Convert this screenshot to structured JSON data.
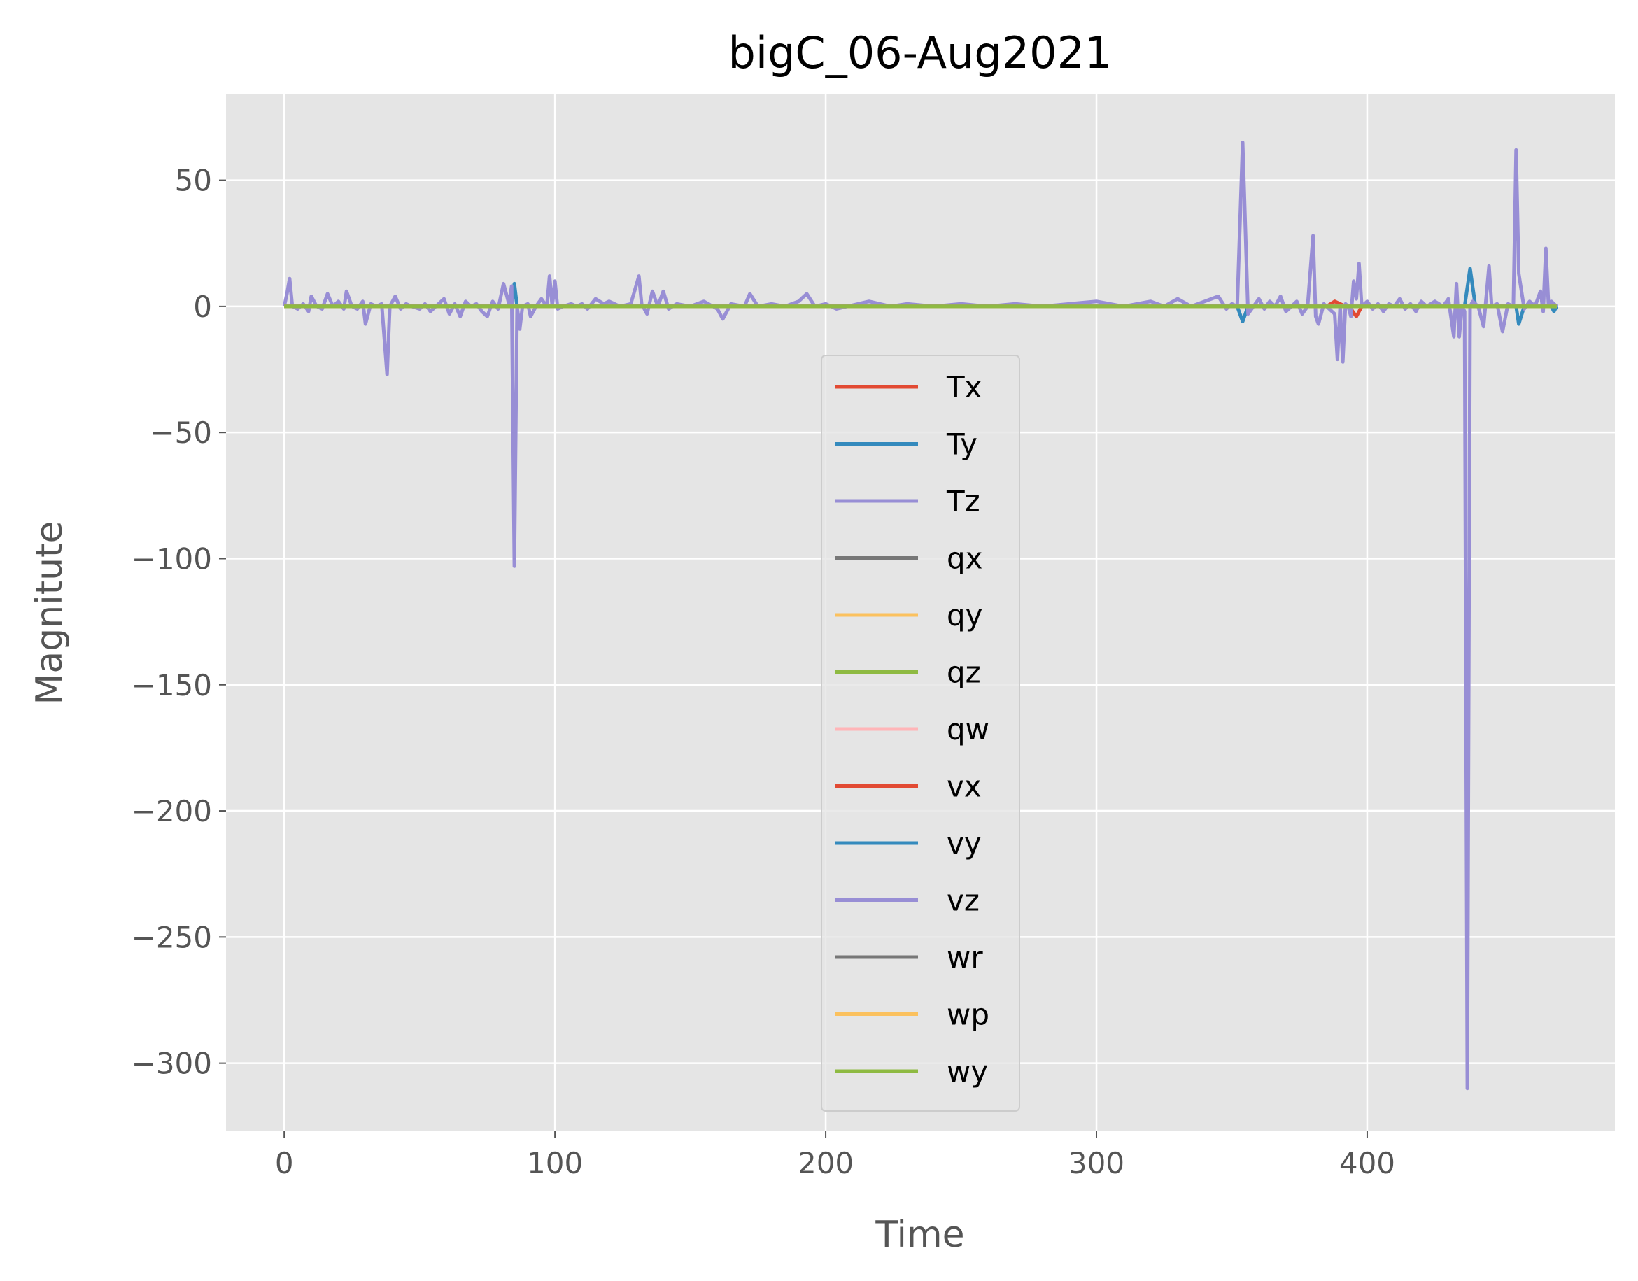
{
  "chart_data": {
    "type": "line",
    "title": "bigC_06-Aug2021",
    "xlabel": "Time",
    "ylabel": "Magnitute",
    "xlim": [
      -21.5,
      491.5
    ],
    "ylim": [
      -327,
      84
    ],
    "xticks": [
      0,
      100,
      200,
      300,
      400
    ],
    "yticks": [
      50,
      0,
      -50,
      -100,
      -150,
      -200,
      -250,
      -300
    ],
    "xtick_labels": [
      "0",
      "100",
      "200",
      "300",
      "400"
    ],
    "ytick_labels": [
      "50",
      "0",
      "−50",
      "−100",
      "−150",
      "−200",
      "−250",
      "−300"
    ],
    "grid": true,
    "background": "#E5E5E5",
    "legend_position": "center",
    "series": [
      {
        "name": "Tx",
        "color": "#E24A33",
        "points": [
          [
            0,
            0
          ],
          [
            100,
            0
          ],
          [
            200,
            0
          ],
          [
            300,
            0
          ],
          [
            385,
            0
          ],
          [
            388,
            2
          ],
          [
            392,
            0
          ],
          [
            394,
            -1
          ],
          [
            396,
            -4
          ],
          [
            398,
            0
          ],
          [
            470,
            0
          ]
        ]
      },
      {
        "name": "Ty",
        "color": "#348ABD",
        "points": [
          [
            0,
            0
          ],
          [
            84,
            0
          ],
          [
            85,
            9
          ],
          [
            86,
            0
          ],
          [
            200,
            0
          ],
          [
            352,
            0
          ],
          [
            354,
            -6
          ],
          [
            356,
            0
          ],
          [
            436,
            0
          ],
          [
            438,
            15
          ],
          [
            440,
            0
          ],
          [
            455,
            0
          ],
          [
            456,
            -7
          ],
          [
            458,
            0
          ],
          [
            468,
            0
          ],
          [
            469,
            -2
          ],
          [
            470,
            0
          ]
        ]
      },
      {
        "name": "Tz",
        "color": "#988ED5",
        "points": [
          [
            0,
            0
          ],
          [
            1,
            5
          ],
          [
            2,
            11
          ],
          [
            3,
            0
          ],
          [
            5,
            -1
          ],
          [
            7,
            1
          ],
          [
            9,
            -2
          ],
          [
            10,
            4
          ],
          [
            12,
            0
          ],
          [
            14,
            -1
          ],
          [
            16,
            5
          ],
          [
            18,
            0
          ],
          [
            20,
            2
          ],
          [
            22,
            -1
          ],
          [
            23,
            6
          ],
          [
            25,
            0
          ],
          [
            27,
            -1
          ],
          [
            29,
            2
          ],
          [
            30,
            -7
          ],
          [
            32,
            1
          ],
          [
            34,
            0
          ],
          [
            36,
            1
          ],
          [
            38,
            -27
          ],
          [
            39,
            0
          ],
          [
            41,
            4
          ],
          [
            43,
            -1
          ],
          [
            45,
            1
          ],
          [
            47,
            0
          ],
          [
            50,
            -1
          ],
          [
            52,
            1
          ],
          [
            54,
            -2
          ],
          [
            56,
            0
          ],
          [
            59,
            3
          ],
          [
            61,
            -3
          ],
          [
            63,
            1
          ],
          [
            65,
            -4
          ],
          [
            67,
            2
          ],
          [
            69,
            0
          ],
          [
            71,
            1
          ],
          [
            73,
            -2
          ],
          [
            75,
            -4
          ],
          [
            77,
            2
          ],
          [
            79,
            -1
          ],
          [
            81,
            9
          ],
          [
            83,
            1
          ],
          [
            84,
            8
          ],
          [
            85,
            -103
          ],
          [
            86,
            0
          ],
          [
            87,
            -9
          ],
          [
            88,
            0
          ],
          [
            90,
            1
          ],
          [
            91,
            -4
          ],
          [
            93,
            0
          ],
          [
            95,
            3
          ],
          [
            97,
            0
          ],
          [
            98,
            12
          ],
          [
            99,
            0
          ],
          [
            100,
            10
          ],
          [
            101,
            -1
          ],
          [
            103,
            0
          ],
          [
            106,
            1
          ],
          [
            108,
            0
          ],
          [
            110,
            1
          ],
          [
            112,
            -1
          ],
          [
            115,
            3
          ],
          [
            118,
            1
          ],
          [
            120,
            2
          ],
          [
            124,
            0
          ],
          [
            128,
            1
          ],
          [
            131,
            12
          ],
          [
            132,
            1
          ],
          [
            134,
            -3
          ],
          [
            136,
            6
          ],
          [
            138,
            0
          ],
          [
            140,
            6
          ],
          [
            142,
            -1
          ],
          [
            145,
            1
          ],
          [
            150,
            0
          ],
          [
            155,
            2
          ],
          [
            160,
            -1
          ],
          [
            162,
            -5
          ],
          [
            165,
            1
          ],
          [
            170,
            0
          ],
          [
            172,
            5
          ],
          [
            175,
            0
          ],
          [
            180,
            1
          ],
          [
            185,
            0
          ],
          [
            190,
            2
          ],
          [
            193,
            5
          ],
          [
            196,
            0
          ],
          [
            200,
            1
          ],
          [
            204,
            -1
          ],
          [
            208,
            0
          ],
          [
            212,
            1
          ],
          [
            216,
            2
          ],
          [
            220,
            1
          ],
          [
            224,
            0
          ],
          [
            230,
            1
          ],
          [
            240,
            0
          ],
          [
            250,
            1
          ],
          [
            260,
            0
          ],
          [
            270,
            1
          ],
          [
            280,
            0
          ],
          [
            290,
            1
          ],
          [
            300,
            2
          ],
          [
            305,
            1
          ],
          [
            310,
            0
          ],
          [
            320,
            2
          ],
          [
            325,
            0
          ],
          [
            330,
            3
          ],
          [
            335,
            0
          ],
          [
            340,
            2
          ],
          [
            345,
            4
          ],
          [
            348,
            -1
          ],
          [
            350,
            1
          ],
          [
            352,
            0
          ],
          [
            354,
            65
          ],
          [
            356,
            -3
          ],
          [
            358,
            0
          ],
          [
            360,
            3
          ],
          [
            362,
            -1
          ],
          [
            364,
            2
          ],
          [
            366,
            0
          ],
          [
            368,
            4
          ],
          [
            370,
            -2
          ],
          [
            372,
            0
          ],
          [
            374,
            2
          ],
          [
            376,
            -3
          ],
          [
            378,
            0
          ],
          [
            380,
            28
          ],
          [
            381,
            -4
          ],
          [
            382,
            -7
          ],
          [
            384,
            1
          ],
          [
            386,
            -1
          ],
          [
            388,
            -3
          ],
          [
            389,
            -21
          ],
          [
            390,
            0
          ],
          [
            391,
            -22
          ],
          [
            392,
            1
          ],
          [
            393,
            0
          ],
          [
            394,
            -4
          ],
          [
            395,
            10
          ],
          [
            396,
            3
          ],
          [
            397,
            17
          ],
          [
            398,
            0
          ],
          [
            400,
            2
          ],
          [
            402,
            -1
          ],
          [
            404,
            1
          ],
          [
            406,
            -2
          ],
          [
            408,
            1
          ],
          [
            410,
            0
          ],
          [
            412,
            3
          ],
          [
            414,
            -1
          ],
          [
            416,
            1
          ],
          [
            418,
            -2
          ],
          [
            420,
            2
          ],
          [
            422,
            0
          ],
          [
            425,
            2
          ],
          [
            428,
            0
          ],
          [
            430,
            3
          ],
          [
            432,
            -12
          ],
          [
            433,
            9
          ],
          [
            434,
            -12
          ],
          [
            435,
            0
          ],
          [
            436,
            -2
          ],
          [
            437,
            -310
          ],
          [
            438,
            0
          ],
          [
            439,
            2
          ],
          [
            441,
            0
          ],
          [
            443,
            -8
          ],
          [
            445,
            16
          ],
          [
            446,
            0
          ],
          [
            448,
            1
          ],
          [
            450,
            -10
          ],
          [
            452,
            1
          ],
          [
            454,
            0
          ],
          [
            455,
            62
          ],
          [
            456,
            13
          ],
          [
            458,
            -1
          ],
          [
            460,
            2
          ],
          [
            462,
            0
          ],
          [
            464,
            6
          ],
          [
            465,
            -2
          ],
          [
            466,
            23
          ],
          [
            467,
            0
          ],
          [
            468,
            2
          ],
          [
            470,
            0
          ]
        ]
      },
      {
        "name": "qx",
        "color": "#777777",
        "points": [
          [
            0,
            0
          ],
          [
            470,
            0
          ]
        ]
      },
      {
        "name": "qy",
        "color": "#FBC15E",
        "points": [
          [
            0,
            0
          ],
          [
            470,
            0
          ]
        ]
      },
      {
        "name": "qz",
        "color": "#8EBA42",
        "points": [
          [
            0,
            0
          ],
          [
            470,
            0
          ]
        ]
      },
      {
        "name": "qw",
        "color": "#FFB5B8",
        "points": [
          [
            0,
            0
          ],
          [
            470,
            0
          ]
        ]
      },
      {
        "name": "vx",
        "color": "#E24A33",
        "points": [
          [
            0,
            0
          ],
          [
            470,
            0
          ]
        ]
      },
      {
        "name": "vy",
        "color": "#348ABD",
        "points": [
          [
            0,
            0
          ],
          [
            470,
            0
          ]
        ]
      },
      {
        "name": "vz",
        "color": "#988ED5",
        "points": [
          [
            0,
            0
          ],
          [
            470,
            0
          ]
        ]
      },
      {
        "name": "wr",
        "color": "#777777",
        "points": [
          [
            0,
            0
          ],
          [
            470,
            0
          ]
        ]
      },
      {
        "name": "wp",
        "color": "#FBC15E",
        "points": [
          [
            0,
            0
          ],
          [
            470,
            0
          ]
        ]
      },
      {
        "name": "wy",
        "color": "#8EBA42",
        "points": [
          [
            0,
            0
          ],
          [
            470,
            0
          ]
        ]
      }
    ]
  }
}
